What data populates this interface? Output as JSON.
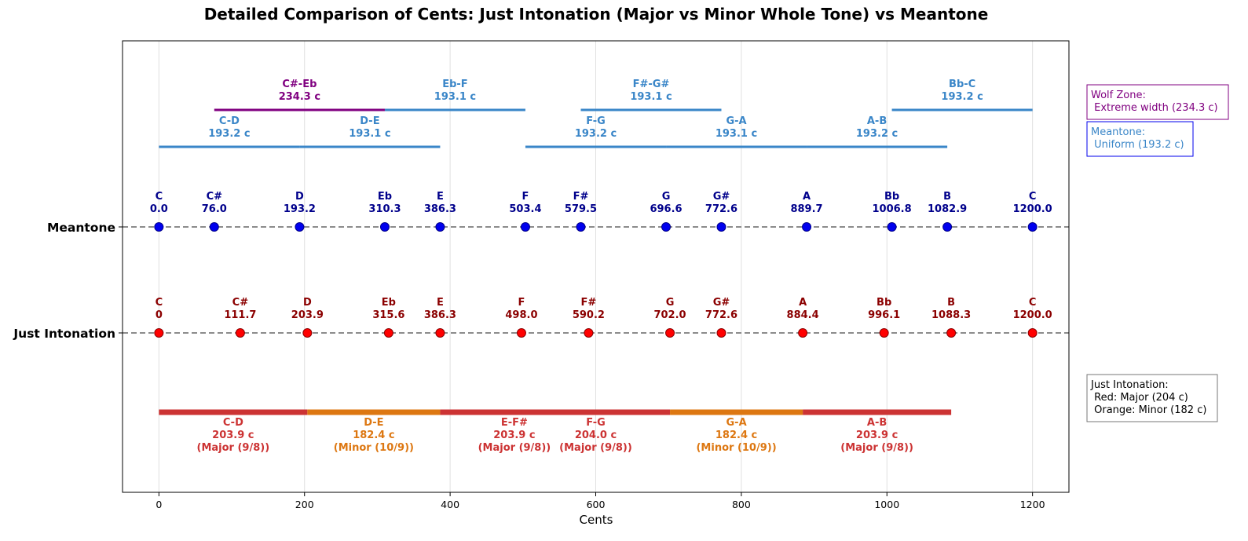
{
  "chart_data": {
    "type": "scatter",
    "title": "Detailed Comparison of Cents: Just Intonation (Major vs Minor Whole Tone) vs Meantone",
    "xlabel": "Cents",
    "xlim": [
      -50,
      1250
    ],
    "xticks": [
      0,
      200,
      400,
      600,
      800,
      1000,
      1200
    ],
    "grid": "vertical",
    "rows": [
      "Meantone",
      "Just Intonation"
    ],
    "colors": {
      "meantone_point": "#0000ee",
      "meantone_label": "#00008b",
      "ji_point": "#ff0000",
      "ji_label": "#8b0000",
      "meantone_bar": "#3a86c8",
      "wolf_bar": "#800080",
      "major_bar": "#cc3333",
      "minor_bar": "#dd7711"
    },
    "meantone": [
      {
        "note": "C",
        "label": "0.0",
        "cents": 0.0
      },
      {
        "note": "C#",
        "label": "76.0",
        "cents": 76.0
      },
      {
        "note": "D",
        "label": "193.2",
        "cents": 193.2
      },
      {
        "note": "Eb",
        "label": "310.3",
        "cents": 310.3
      },
      {
        "note": "E",
        "label": "386.3",
        "cents": 386.3
      },
      {
        "note": "F",
        "label": "503.4",
        "cents": 503.4
      },
      {
        "note": "F#",
        "label": "579.5",
        "cents": 579.5
      },
      {
        "note": "G",
        "label": "696.6",
        "cents": 696.6
      },
      {
        "note": "G#",
        "label": "772.6",
        "cents": 772.6
      },
      {
        "note": "A",
        "label": "889.7",
        "cents": 889.7
      },
      {
        "note": "Bb",
        "label": "1006.8",
        "cents": 1006.8
      },
      {
        "note": "B",
        "label": "1082.9",
        "cents": 1082.9
      },
      {
        "note": "C",
        "label": "1200.0",
        "cents": 1200.0
      }
    ],
    "just_intonation": [
      {
        "note": "C",
        "label": "0",
        "cents": 0
      },
      {
        "note": "C#",
        "label": "111.7",
        "cents": 111.7
      },
      {
        "note": "D",
        "label": "203.9",
        "cents": 203.9
      },
      {
        "note": "Eb",
        "label": "315.6",
        "cents": 315.6
      },
      {
        "note": "E",
        "label": "386.3",
        "cents": 386.3
      },
      {
        "note": "F",
        "label": "498.0",
        "cents": 498.0
      },
      {
        "note": "F#",
        "label": "590.2",
        "cents": 590.2
      },
      {
        "note": "G",
        "label": "702.0",
        "cents": 702.0
      },
      {
        "note": "G#",
        "label": "772.6",
        "cents": 772.6
      },
      {
        "note": "A",
        "label": "884.4",
        "cents": 884.4
      },
      {
        "note": "Bb",
        "label": "996.1",
        "cents": 996.1
      },
      {
        "note": "B",
        "label": "1088.3",
        "cents": 1088.3
      },
      {
        "note": "C",
        "label": "1200.0",
        "cents": 1200.0
      }
    ],
    "meantone_intervals": [
      {
        "name": "C-D",
        "label": "193.2 c",
        "start": 0.0,
        "end": 193.2,
        "tier": "lower",
        "kind": "uniform"
      },
      {
        "name": "D-E",
        "label": "193.1 c",
        "start": 193.2,
        "end": 386.3,
        "tier": "lower",
        "kind": "uniform"
      },
      {
        "name": "F-G",
        "label": "193.2 c",
        "start": 503.4,
        "end": 696.6,
        "tier": "lower",
        "kind": "uniform"
      },
      {
        "name": "G-A",
        "label": "193.1 c",
        "start": 696.6,
        "end": 889.7,
        "tier": "lower",
        "kind": "uniform"
      },
      {
        "name": "A-B",
        "label": "193.2 c",
        "start": 889.7,
        "end": 1082.9,
        "tier": "lower",
        "kind": "uniform"
      },
      {
        "name": "C#-Eb",
        "label": "234.3 c",
        "start": 76.0,
        "end": 310.3,
        "tier": "upper",
        "kind": "wolf"
      },
      {
        "name": "Eb-F",
        "label": "193.1 c",
        "start": 310.3,
        "end": 503.4,
        "tier": "upper",
        "kind": "uniform"
      },
      {
        "name": "F#-G#",
        "label": "193.1 c",
        "start": 579.5,
        "end": 772.6,
        "tier": "upper",
        "kind": "uniform"
      },
      {
        "name": "Bb-C",
        "label": "193.2 c",
        "start": 1006.8,
        "end": 1200.0,
        "tier": "upper",
        "kind": "uniform"
      }
    ],
    "ji_intervals": [
      {
        "name": "C-D",
        "label": "203.9 c",
        "ratio": "(Major (9/8))",
        "start": 0,
        "end": 203.9,
        "kind": "major"
      },
      {
        "name": "D-E",
        "label": "182.4 c",
        "ratio": "(Minor (10/9))",
        "start": 203.9,
        "end": 386.3,
        "kind": "minor"
      },
      {
        "name": "E-F#",
        "label": "203.9 c",
        "ratio": "(Major (9/8))",
        "start": 386.3,
        "end": 590.2,
        "kind": "major"
      },
      {
        "name": "F-G",
        "label": "204.0 c",
        "ratio": "(Major (9/8))",
        "start": 498.0,
        "end": 702.0,
        "kind": "major"
      },
      {
        "name": "G-A",
        "label": "182.4 c",
        "ratio": "(Minor (10/9))",
        "start": 702.0,
        "end": 884.4,
        "kind": "minor"
      },
      {
        "name": "A-B",
        "label": "203.9 c",
        "ratio": "(Major (9/8))",
        "start": 884.4,
        "end": 1088.3,
        "kind": "major"
      }
    ],
    "legend": {
      "wolf": [
        "Wolf Zone:",
        " Extreme width (234.3 c)"
      ],
      "meantone": [
        "Meantone:",
        " Uniform (193.2 c)"
      ],
      "ji": [
        "Just Intonation:",
        " Red: Major (204 c)",
        " Orange: Minor (182 c)"
      ]
    }
  }
}
